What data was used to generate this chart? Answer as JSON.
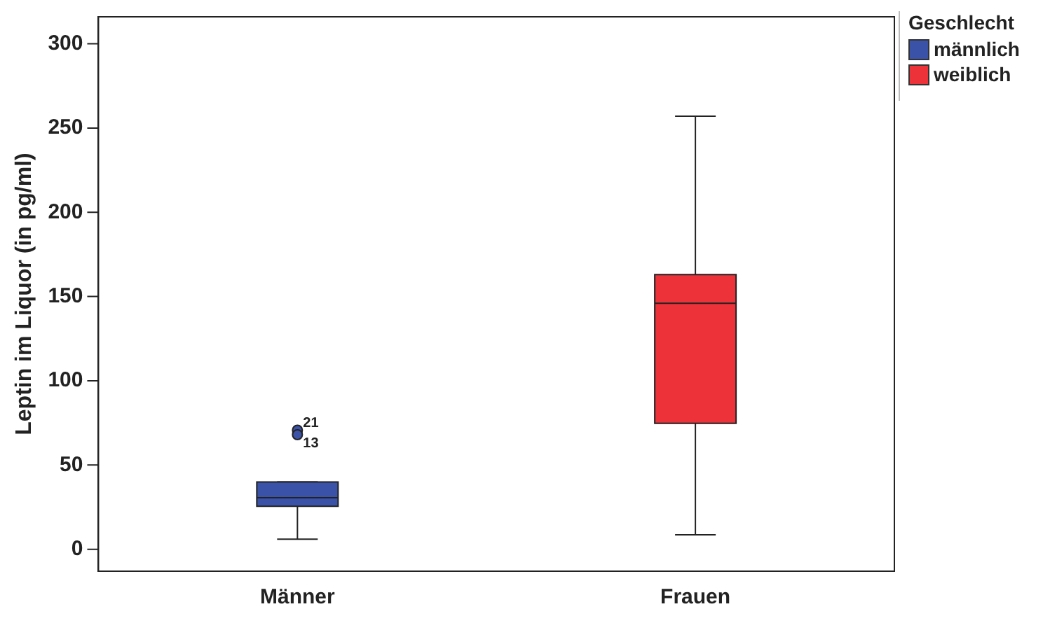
{
  "chart_data": {
    "type": "box",
    "ylabel": "Leptin im Liquor (in pg/ml)",
    "legend_title": "Geschlecht",
    "legend": "top right",
    "categories": [
      "Männer",
      "Frauen"
    ],
    "series": [
      {
        "name": "männlich",
        "color": "#3a52a8",
        "boxes": [
          {
            "low": 6,
            "q1": 25.5,
            "median": 30.6,
            "q3": 40,
            "high": 40,
            "outliers": [
              70.7,
              68
            ]
          },
          null
        ]
      },
      {
        "name": "weiblich",
        "color": "#ee3239",
        "boxes": [
          null,
          {
            "low": 8.6,
            "q1": 74.8,
            "median": 146,
            "q3": 163,
            "high": 257
          }
        ]
      }
    ],
    "annotations": [
      "21",
      "13"
    ],
    "ylim": [
      -13,
      316
    ],
    "yticks": [
      0,
      50,
      100,
      150,
      200,
      250,
      300
    ],
    "grid": false
  }
}
